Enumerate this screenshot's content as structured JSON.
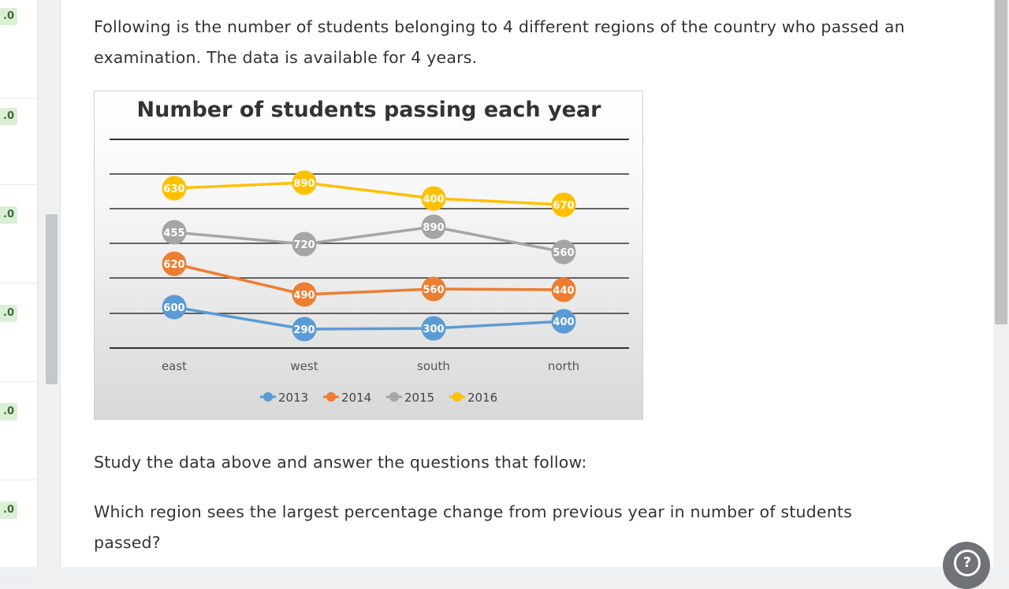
{
  "rail": {
    "badges": [
      ".0",
      ".0",
      ".0",
      ".0",
      ".0",
      ".0"
    ]
  },
  "intro": "Following is the number of students belonging to 4 different regions of the country who passed an examination. The data is available for 4 years.",
  "instruction": "Study the data above and answer the questions that follow:",
  "question": "Which region sees the largest percentage change from previous year in number of students passed?",
  "help_icon": "question-mark-icon",
  "chart_data": {
    "type": "line",
    "title": "Number of students passing each year",
    "categories": [
      "east",
      "west",
      "south",
      "north"
    ],
    "series": [
      {
        "name": "2013",
        "color": "#5b9bd5",
        "labels": [
          "600",
          "290",
          "300",
          "400"
        ],
        "values": [
          600,
          290,
          300,
          400
        ]
      },
      {
        "name": "2014",
        "color": "#ed7d31",
        "labels": [
          "620",
          "490",
          "560",
          "440"
        ],
        "values": [
          620,
          490,
          560,
          440
        ]
      },
      {
        "name": "2015",
        "color": "#a5a5a5",
        "labels": [
          "455",
          "720",
          "890",
          "560"
        ],
        "values": [
          455,
          720,
          890,
          560
        ]
      },
      {
        "name": "2016",
        "color": "#ffc000",
        "labels": [
          "630",
          "890",
          "400",
          "670"
        ],
        "values": [
          630,
          890,
          400,
          670
        ]
      }
    ],
    "legend_position": "bottom",
    "grid": true
  }
}
